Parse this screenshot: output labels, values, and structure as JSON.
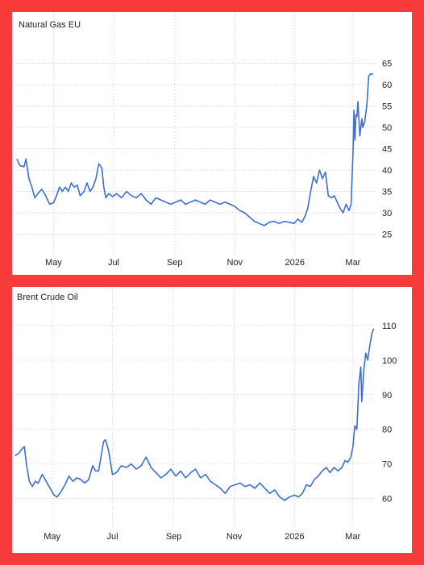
{
  "chart_data": [
    {
      "type": "line",
      "title": "Natural Gas EU",
      "xlabel": "",
      "ylabel": "",
      "ylim": [
        20,
        70
      ],
      "yticks": [
        25,
        30,
        35,
        40,
        45,
        50,
        55,
        60,
        65
      ],
      "x_range": [
        "2025-03-24",
        "2026-03-24"
      ],
      "xticks": [
        {
          "date": "2025-05-01",
          "label": "May"
        },
        {
          "date": "2025-07-01",
          "label": "Jul"
        },
        {
          "date": "2025-09-01",
          "label": "Sep"
        },
        {
          "date": "2025-11-01",
          "label": "Nov"
        },
        {
          "date": "2026-01-01",
          "label": "2026"
        },
        {
          "date": "2026-03-01",
          "label": "Mar"
        }
      ],
      "grid": true,
      "color": "#3d6fd1",
      "x": [
        "2025-03-25",
        "2025-03-28",
        "2025-04-01",
        "2025-04-03",
        "2025-04-06",
        "2025-04-09",
        "2025-04-12",
        "2025-04-15",
        "2025-04-19",
        "2025-04-23",
        "2025-04-27",
        "2025-05-01",
        "2025-05-04",
        "2025-05-07",
        "2025-05-10",
        "2025-05-13",
        "2025-05-16",
        "2025-05-19",
        "2025-05-22",
        "2025-05-25",
        "2025-05-28",
        "2025-06-01",
        "2025-06-04",
        "2025-06-07",
        "2025-06-10",
        "2025-06-13",
        "2025-06-16",
        "2025-06-19",
        "2025-06-21",
        "2025-06-23",
        "2025-06-26",
        "2025-06-30",
        "2025-07-04",
        "2025-07-09",
        "2025-07-14",
        "2025-07-19",
        "2025-07-24",
        "2025-07-29",
        "2025-08-03",
        "2025-08-08",
        "2025-08-13",
        "2025-08-18",
        "2025-08-23",
        "2025-08-28",
        "2025-09-02",
        "2025-09-07",
        "2025-09-12",
        "2025-09-17",
        "2025-09-22",
        "2025-09-27",
        "2025-10-02",
        "2025-10-07",
        "2025-10-12",
        "2025-10-17",
        "2025-10-22",
        "2025-10-27",
        "2025-11-01",
        "2025-11-06",
        "2025-11-11",
        "2025-11-16",
        "2025-11-21",
        "2025-11-26",
        "2025-12-01",
        "2025-12-06",
        "2025-12-11",
        "2025-12-16",
        "2025-12-21",
        "2025-12-26",
        "2025-12-31",
        "2026-01-04",
        "2026-01-08",
        "2026-01-11",
        "2026-01-14",
        "2026-01-17",
        "2026-01-20",
        "2026-01-23",
        "2026-01-26",
        "2026-01-29",
        "2026-02-01",
        "2026-02-04",
        "2026-02-07",
        "2026-02-10",
        "2026-02-13",
        "2026-02-16",
        "2026-02-19",
        "2026-02-22",
        "2026-02-25",
        "2026-02-27",
        "2026-03-01",
        "2026-03-02",
        "2026-03-03",
        "2026-03-04",
        "2026-03-05",
        "2026-03-06",
        "2026-03-08",
        "2026-03-10",
        "2026-03-11",
        "2026-03-13",
        "2026-03-15",
        "2026-03-17",
        "2026-03-19",
        "2026-03-21"
      ],
      "series": [
        {
          "values": [
            42.5,
            41,
            40.8,
            42.6,
            38,
            36,
            33.5,
            34.5,
            35.5,
            34,
            32,
            32.3,
            34,
            36,
            35,
            36,
            35,
            37,
            36,
            36.5,
            34,
            35,
            37,
            35,
            36,
            38,
            41.5,
            40.5,
            36,
            33.5,
            34.5,
            33.8,
            34.5,
            33.5,
            35,
            34,
            33.5,
            34.5,
            33,
            32,
            33.5,
            33,
            32.5,
            32,
            32.5,
            33,
            32,
            32.5,
            33,
            32.5,
            32,
            33,
            32.5,
            32,
            32.5,
            32,
            31.5,
            30.5,
            30,
            29,
            28,
            27.5,
            27,
            27.8,
            28,
            27.5,
            28,
            27.8,
            27.5,
            28.5,
            27.8,
            29,
            31,
            35,
            38.5,
            37,
            40,
            38,
            39.5,
            34,
            33.5,
            34,
            32.5,
            31,
            30,
            32,
            30.5,
            32,
            44,
            54,
            47,
            53,
            52.5,
            56,
            48,
            52,
            50,
            51.5,
            55,
            62,
            62.5,
            62.5
          ]
        }
      ]
    },
    {
      "type": "line",
      "title": "Brent Crude Oil",
      "xlabel": "",
      "ylabel": "",
      "ylim": [
        52,
        113
      ],
      "yticks": [
        60,
        70,
        80,
        90,
        100,
        110
      ],
      "x_range": [
        "2025-03-24",
        "2026-03-24"
      ],
      "xticks": [
        {
          "date": "2025-05-01",
          "label": "May"
        },
        {
          "date": "2025-07-01",
          "label": "Jul"
        },
        {
          "date": "2025-09-01",
          "label": "Sep"
        },
        {
          "date": "2025-11-01",
          "label": "Nov"
        },
        {
          "date": "2026-01-01",
          "label": "2026"
        },
        {
          "date": "2026-03-01",
          "label": "Mar"
        }
      ],
      "grid": true,
      "color": "#3d6fd1",
      "x": [
        "2025-03-25",
        "2025-03-28",
        "2025-04-01",
        "2025-04-03",
        "2025-04-05",
        "2025-04-08",
        "2025-04-11",
        "2025-04-14",
        "2025-04-17",
        "2025-04-21",
        "2025-04-25",
        "2025-04-29",
        "2025-05-03",
        "2025-05-06",
        "2025-05-10",
        "2025-05-14",
        "2025-05-18",
        "2025-05-22",
        "2025-05-26",
        "2025-05-30",
        "2025-06-03",
        "2025-06-07",
        "2025-06-11",
        "2025-06-14",
        "2025-06-17",
        "2025-06-20",
        "2025-06-22",
        "2025-06-24",
        "2025-06-27",
        "2025-07-01",
        "2025-07-05",
        "2025-07-10",
        "2025-07-15",
        "2025-07-20",
        "2025-07-25",
        "2025-07-30",
        "2025-08-04",
        "2025-08-09",
        "2025-08-14",
        "2025-08-19",
        "2025-08-24",
        "2025-08-29",
        "2025-09-03",
        "2025-09-08",
        "2025-09-13",
        "2025-09-18",
        "2025-09-23",
        "2025-09-28",
        "2025-10-03",
        "2025-10-08",
        "2025-10-13",
        "2025-10-18",
        "2025-10-23",
        "2025-10-28",
        "2025-11-02",
        "2025-11-07",
        "2025-11-12",
        "2025-11-17",
        "2025-11-22",
        "2025-11-27",
        "2025-12-02",
        "2025-12-07",
        "2025-12-12",
        "2025-12-17",
        "2025-12-22",
        "2025-12-27",
        "2026-01-01",
        "2026-01-05",
        "2026-01-09",
        "2026-01-13",
        "2026-01-17",
        "2026-01-21",
        "2026-01-25",
        "2026-01-29",
        "2026-02-02",
        "2026-02-06",
        "2026-02-10",
        "2026-02-14",
        "2026-02-18",
        "2026-02-21",
        "2026-02-24",
        "2026-02-27",
        "2026-03-01",
        "2026-03-03",
        "2026-03-05",
        "2026-03-06",
        "2026-03-07",
        "2026-03-09",
        "2026-03-10",
        "2026-03-12",
        "2026-03-14",
        "2026-03-16",
        "2026-03-18",
        "2026-03-20",
        "2026-03-22"
      ],
      "series": [
        {
          "values": [
            72.5,
            73,
            74.5,
            75,
            70,
            65,
            63.5,
            65,
            64.5,
            67,
            65,
            63,
            61,
            60.5,
            62,
            64,
            66.5,
            65,
            66,
            65.5,
            64.5,
            65.5,
            69.5,
            68,
            68,
            73,
            76.5,
            77,
            74,
            67,
            67.5,
            69.5,
            69,
            70,
            68.5,
            69.5,
            72,
            69,
            67.5,
            66,
            67,
            68.5,
            66.5,
            68,
            66,
            67.5,
            68.5,
            66,
            67,
            65,
            64,
            63,
            61.5,
            63.5,
            64,
            64.5,
            63.5,
            64,
            63,
            64.5,
            63,
            61.5,
            62.5,
            60.5,
            59.5,
            60.5,
            61,
            60.5,
            61.5,
            64,
            63.5,
            65.5,
            66.5,
            68,
            69,
            67.5,
            69,
            68,
            69,
            71,
            70.5,
            72,
            75,
            81,
            80,
            86,
            93,
            98,
            88,
            97,
            102,
            100,
            104,
            107.5,
            109
          ]
        }
      ]
    }
  ]
}
